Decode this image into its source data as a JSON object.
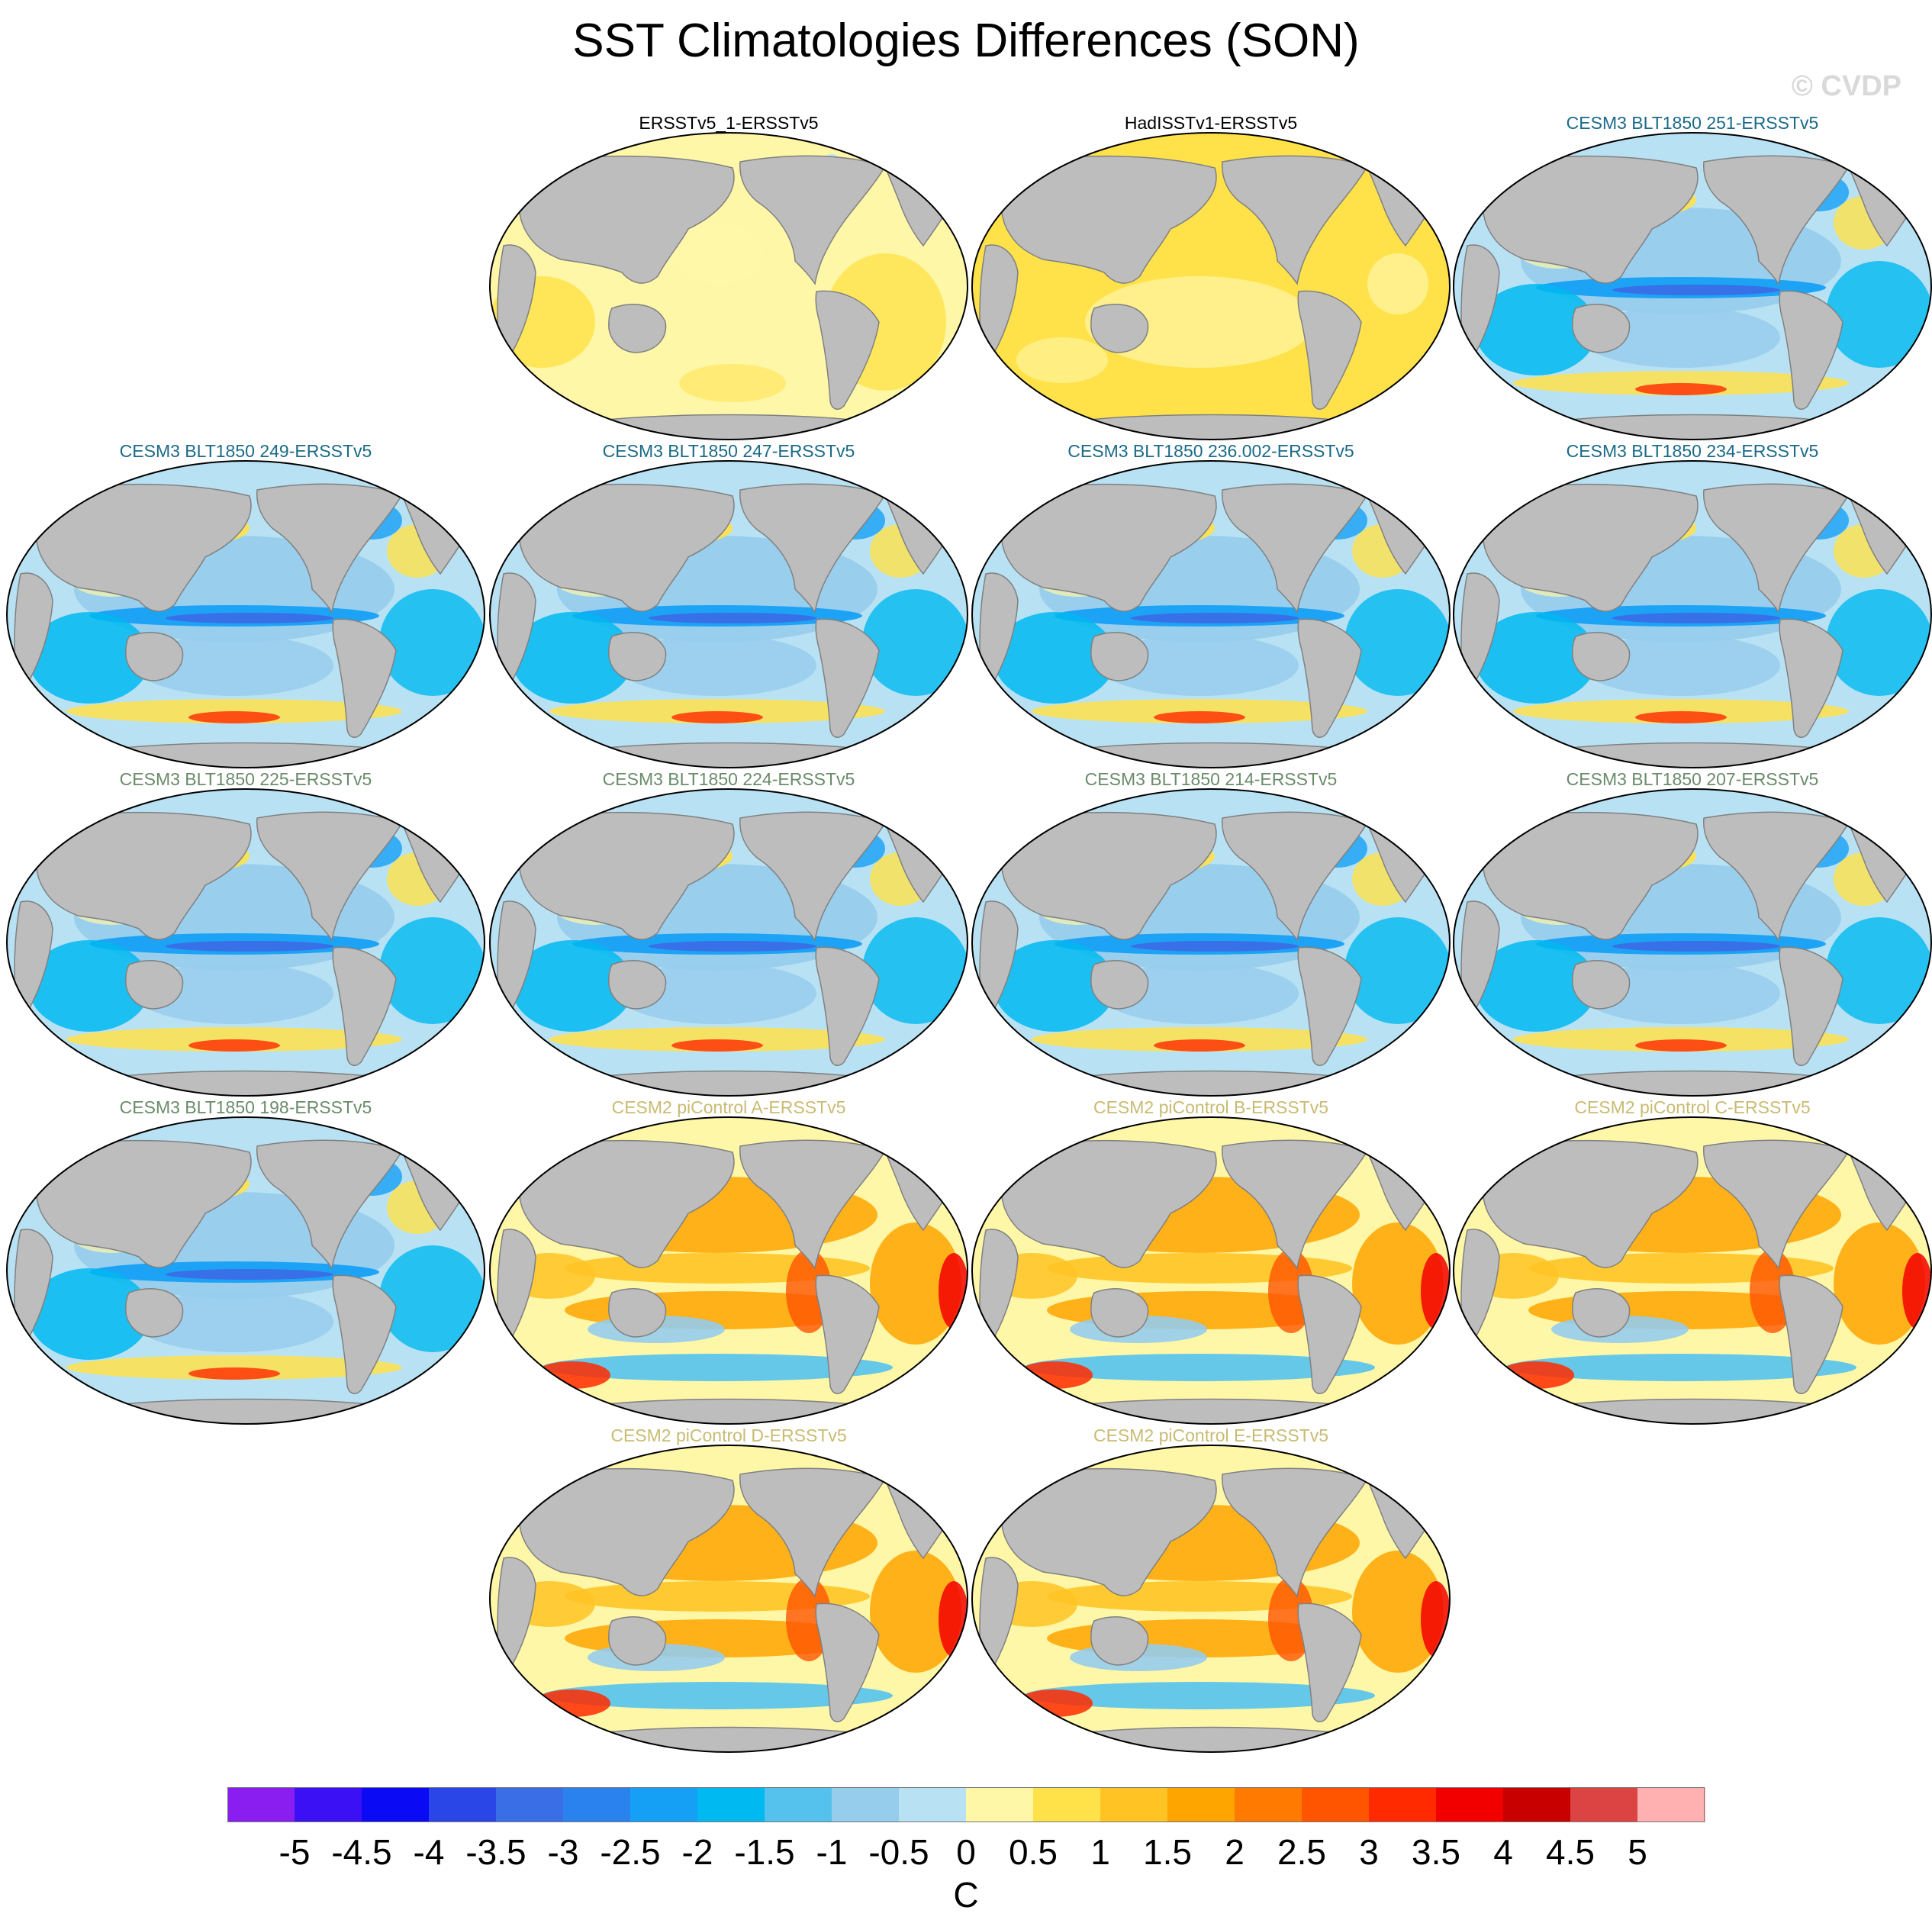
{
  "title": "SST Climatologies Differences (SON)",
  "watermark": "© CVDP",
  "colors": {
    "land": "#bdbdbd",
    "ocean_neutral": "#fff7a8",
    "obs_title": "#000000",
    "cesm3_blt_251_249_247_236_234": "#1a6a88",
    "cesm3_blt_225_and_older": "#6a8b6a",
    "cesm2_picontrol": "#c9bb72"
  },
  "panels": [
    {
      "title": "ERSSTv5_1-ERSSTv5",
      "group": "obs",
      "title_color": "#000000",
      "pattern": "obs1"
    },
    {
      "title": "HadISSTv1-ERSSTv5",
      "group": "obs",
      "title_color": "#000000",
      "pattern": "obs2"
    },
    {
      "title": "CESM3 BLT1850 251-ERSSTv5",
      "group": "cesm3",
      "title_color": "#1a6a88",
      "pattern": "cold"
    },
    {
      "title": "CESM3 BLT1850 249-ERSSTv5",
      "group": "cesm3",
      "title_color": "#1a6a88",
      "pattern": "cold"
    },
    {
      "title": "CESM3 BLT1850 247-ERSSTv5",
      "group": "cesm3",
      "title_color": "#1a6a88",
      "pattern": "cold"
    },
    {
      "title": "CESM3 BLT1850 236.002-ERSSTv5",
      "group": "cesm3",
      "title_color": "#1a6a88",
      "pattern": "cold"
    },
    {
      "title": "CESM3 BLT1850 234-ERSSTv5",
      "group": "cesm3",
      "title_color": "#1a6a88",
      "pattern": "cold"
    },
    {
      "title": "CESM3 BLT1850 225-ERSSTv5",
      "group": "cesm3",
      "title_color": "#6a8b6a",
      "pattern": "cold"
    },
    {
      "title": "CESM3 BLT1850 224-ERSSTv5",
      "group": "cesm3",
      "title_color": "#6a8b6a",
      "pattern": "cold"
    },
    {
      "title": "CESM3 BLT1850 214-ERSSTv5",
      "group": "cesm3",
      "title_color": "#6a8b6a",
      "pattern": "cold"
    },
    {
      "title": "CESM3 BLT1850 207-ERSSTv5",
      "group": "cesm3",
      "title_color": "#6a8b6a",
      "pattern": "cold"
    },
    {
      "title": "CESM3 BLT1850 198-ERSSTv5",
      "group": "cesm3",
      "title_color": "#6a8b6a",
      "pattern": "cold"
    },
    {
      "title": "CESM2 piControl A-ERSSTv5",
      "group": "cesm2",
      "title_color": "#c9bb72",
      "pattern": "warm"
    },
    {
      "title": "CESM2 piControl B-ERSSTv5",
      "group": "cesm2",
      "title_color": "#c9bb72",
      "pattern": "warm"
    },
    {
      "title": "CESM2 piControl C-ERSSTv5",
      "group": "cesm2",
      "title_color": "#c9bb72",
      "pattern": "warm"
    },
    {
      "title": "CESM2 piControl D-ERSSTv5",
      "group": "cesm2",
      "title_color": "#c9bb72",
      "pattern": "warm"
    },
    {
      "title": "CESM2 piControl E-ERSSTv5",
      "group": "cesm2",
      "title_color": "#c9bb72",
      "pattern": "warm"
    }
  ],
  "colorbar": {
    "colors": [
      "#8a1ef0",
      "#3c10f5",
      "#0a0af5",
      "#2a46e6",
      "#3a6ee6",
      "#2a82ee",
      "#16a0f5",
      "#00b9f0",
      "#55c2ee",
      "#96ccec",
      "#b8e2f4",
      "#fff7a8",
      "#ffe24a",
      "#ffc424",
      "#ffa500",
      "#ff7a00",
      "#ff5400",
      "#ff2a00",
      "#f20000",
      "#c80000",
      "#dc4444",
      "#ffb0b0"
    ],
    "tick_labels": [
      "-5",
      "-4.5",
      "-4",
      "-3.5",
      "-3",
      "-2.5",
      "-2",
      "-1.5",
      "-1",
      "-0.5",
      "0",
      "0.5",
      "1",
      "1.5",
      "2",
      "2.5",
      "3",
      "3.5",
      "4",
      "4.5",
      "5"
    ],
    "units": "C"
  }
}
